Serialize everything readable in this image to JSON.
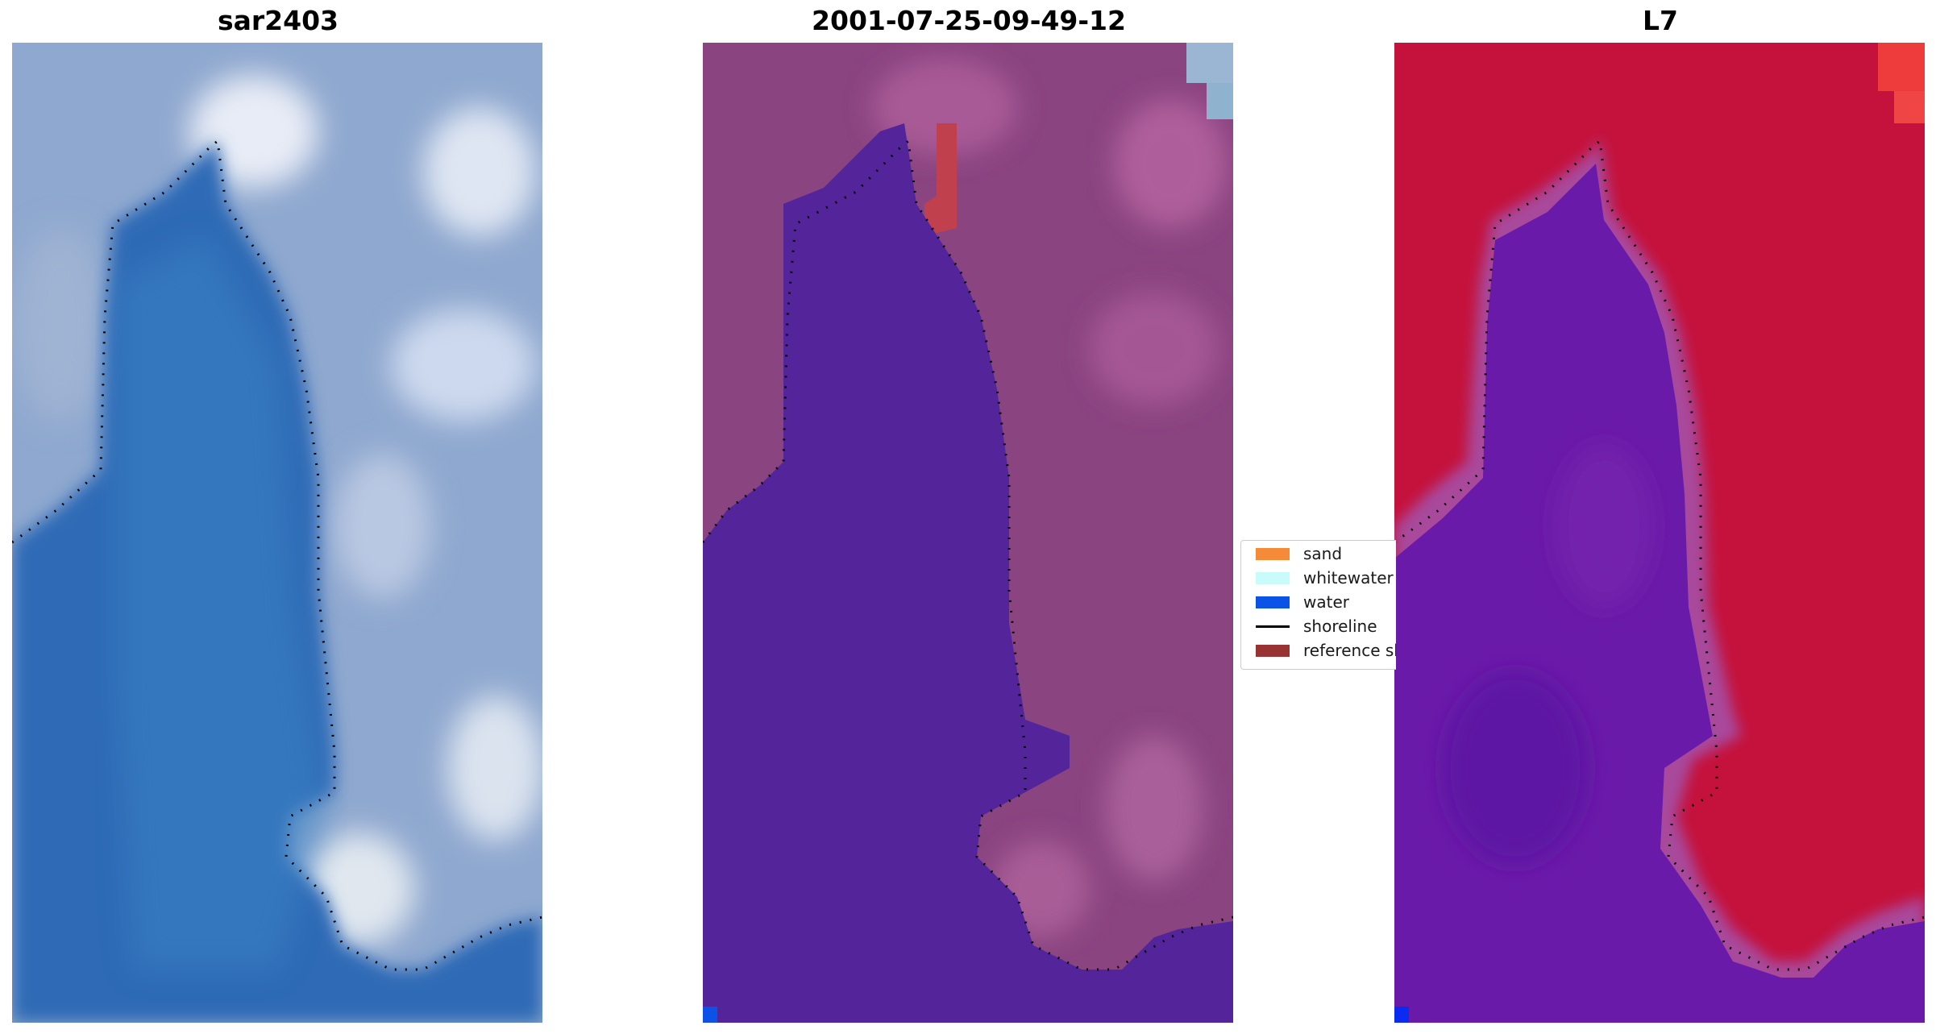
{
  "panels": [
    {
      "title": "sar2403"
    },
    {
      "title": "2001-07-25-09-49-12"
    },
    {
      "title": "L7"
    }
  ],
  "legend": {
    "items": [
      {
        "label": "sand",
        "color": "#f58b38",
        "kind": "patch"
      },
      {
        "label": "whitewater",
        "color": "#c9fbfb",
        "kind": "patch"
      },
      {
        "label": "water",
        "color": "#0b52e6",
        "kind": "patch"
      },
      {
        "label": "shoreline",
        "color": "#000000",
        "kind": "line"
      },
      {
        "label": "reference shoreline",
        "color": "#993333",
        "kind": "patch"
      }
    ]
  },
  "colors": {
    "rgb_sea": "#2f6bb6",
    "rgb_land": "#8ea7cf",
    "class_water": "#53249a",
    "class_land": "#8e4684",
    "ndwi_land": "#c4123c",
    "ndwi_water": "#6a1aa8"
  }
}
